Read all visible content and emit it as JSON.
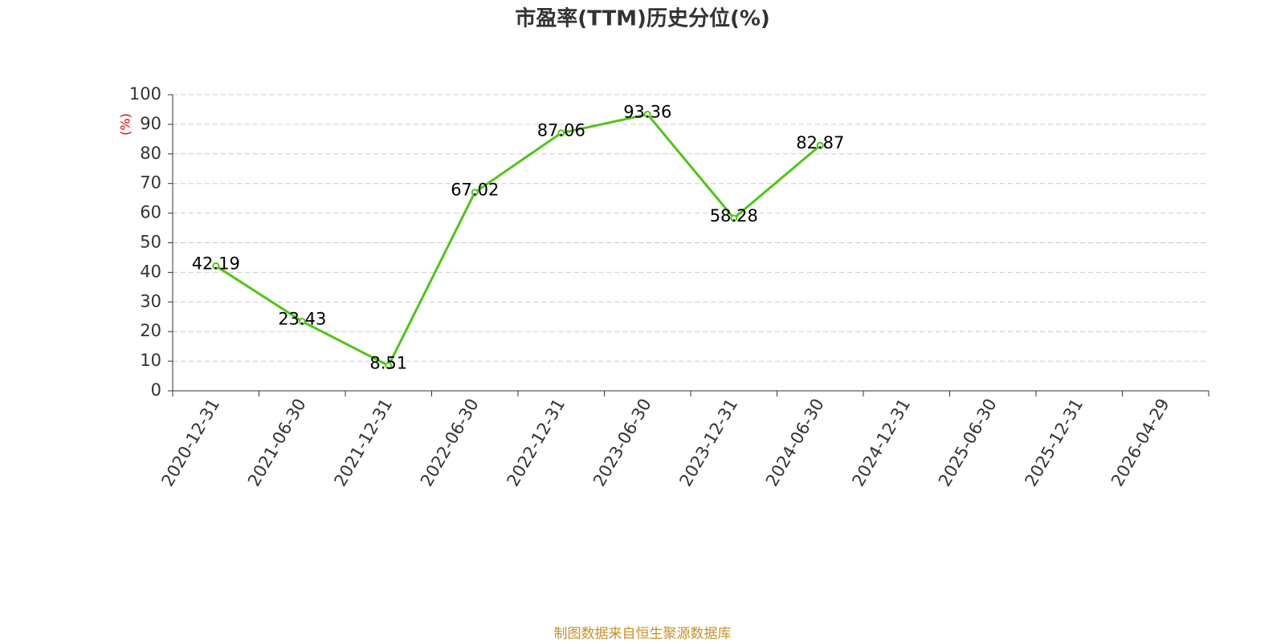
{
  "chart_data": {
    "type": "line",
    "title": "市盈率(TTM)历史分位(%)",
    "y_label": "(%)",
    "source": "制图数据来自恒生聚源数据库",
    "categories": [
      "2020-12-31",
      "2021-06-30",
      "2021-12-31",
      "2022-06-30",
      "2022-12-31",
      "2023-06-30",
      "2023-12-31",
      "2024-06-30",
      "2024-12-31",
      "2025-06-30",
      "2025-12-31",
      "2026-04-29"
    ],
    "values": [
      42.19,
      23.43,
      8.51,
      67.02,
      87.06,
      93.36,
      58.28,
      82.87,
      null,
      null,
      null,
      null
    ],
    "color": "#52c41a",
    "ylim": [
      0,
      100
    ],
    "yticks": [
      0,
      10,
      20,
      30,
      40,
      50,
      60,
      70,
      80,
      90,
      100
    ],
    "grid": true
  }
}
